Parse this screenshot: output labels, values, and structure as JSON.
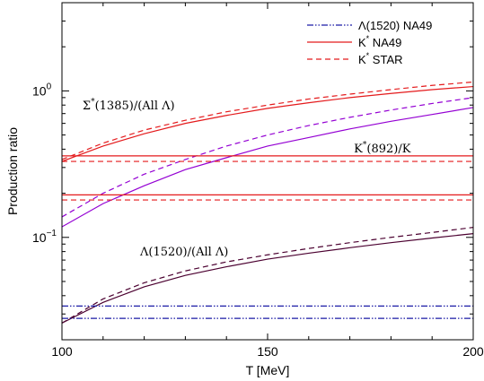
{
  "chart_data": {
    "type": "line",
    "xlabel": "T [MeV]",
    "ylabel": "Production ratio",
    "xlim": [
      100,
      200
    ],
    "ylim": [
      0.02,
      4
    ],
    "y_scale": "log",
    "x_ticks": [
      {
        "value": 100,
        "label": "100"
      },
      {
        "value": 150,
        "label": "150"
      },
      {
        "value": 200,
        "label": "200"
      }
    ],
    "y_ticks": [
      {
        "value": 0.1,
        "base": "10",
        "exp": "−1"
      },
      {
        "value": 1,
        "base": "10",
        "exp": "0"
      }
    ],
    "legend": {
      "position": "top-right",
      "entries": [
        {
          "label": "Λ(1520) NA49",
          "color": "#1a1aa6",
          "dash": "dashdotdot"
        },
        {
          "label": "K* NA49",
          "color": "#e41a1c",
          "dash": "solid"
        },
        {
          "label": "K* STAR",
          "color": "#e41a1c",
          "dash": "dashed"
        }
      ]
    },
    "annotations": [
      {
        "text": "Σ*(1385)/(All Λ)",
        "x": 105,
        "y": 0.75
      },
      {
        "text": "K*(892)/K",
        "x": 171,
        "y": 0.38
      },
      {
        "text": "Λ(1520)/(All Λ)",
        "x": 119,
        "y": 0.075
      }
    ],
    "series": [
      {
        "color": "#e41a1c",
        "dash": "solid",
        "x": [
          100,
          110,
          120,
          130,
          140,
          150,
          160,
          170,
          180,
          190,
          200
        ],
        "y": [
          0.33,
          0.42,
          0.51,
          0.6,
          0.68,
          0.76,
          0.83,
          0.9,
          0.96,
          1.02,
          1.07
        ]
      },
      {
        "color": "#e41a1c",
        "dash": "dashed",
        "x": [
          100,
          110,
          120,
          130,
          140,
          150,
          160,
          170,
          180,
          190,
          200
        ],
        "y": [
          0.34,
          0.44,
          0.54,
          0.63,
          0.72,
          0.8,
          0.88,
          0.95,
          1.02,
          1.09,
          1.15
        ]
      },
      {
        "color": "#9400d3",
        "dash": "solid",
        "x": [
          100,
          110,
          120,
          130,
          140,
          150,
          160,
          170,
          180,
          190,
          200
        ],
        "y": [
          0.118,
          0.17,
          0.225,
          0.29,
          0.35,
          0.42,
          0.48,
          0.55,
          0.62,
          0.69,
          0.77
        ]
      },
      {
        "color": "#9400d3",
        "dash": "dashed",
        "x": [
          100,
          110,
          120,
          130,
          140,
          150,
          160,
          170,
          180,
          190,
          200
        ],
        "y": [
          0.138,
          0.2,
          0.27,
          0.34,
          0.42,
          0.5,
          0.58,
          0.66,
          0.74,
          0.82,
          0.9
        ]
      },
      {
        "color": "#4b0030",
        "dash": "solid",
        "x": [
          100,
          110,
          120,
          130,
          140,
          150,
          160,
          170,
          180,
          190,
          200
        ],
        "y": [
          0.026,
          0.036,
          0.046,
          0.055,
          0.063,
          0.071,
          0.078,
          0.085,
          0.092,
          0.099,
          0.106
        ]
      },
      {
        "color": "#4b0030",
        "dash": "dashed",
        "x": [
          100,
          110,
          120,
          130,
          140,
          150,
          160,
          170,
          180,
          190,
          200
        ],
        "y": [
          0.026,
          0.038,
          0.049,
          0.059,
          0.068,
          0.076,
          0.084,
          0.092,
          0.1,
          0.108,
          0.117
        ]
      },
      {
        "color": "#e41a1c",
        "dash": "solid",
        "x": [
          100,
          200
        ],
        "y": [
          0.36,
          0.36
        ]
      },
      {
        "color": "#e41a1c",
        "dash": "dashed",
        "x": [
          100,
          200
        ],
        "y": [
          0.33,
          0.33
        ]
      },
      {
        "color": "#e41a1c",
        "dash": "solid",
        "x": [
          100,
          200
        ],
        "y": [
          0.195,
          0.195
        ]
      },
      {
        "color": "#e41a1c",
        "dash": "dashed",
        "x": [
          100,
          200
        ],
        "y": [
          0.18,
          0.18
        ]
      },
      {
        "color": "#1a1aa6",
        "dash": "dashdotdot",
        "x": [
          100,
          200
        ],
        "y": [
          0.034,
          0.034
        ]
      },
      {
        "color": "#1a1aa6",
        "dash": "dashdotdot",
        "x": [
          100,
          200
        ],
        "y": [
          0.028,
          0.028
        ]
      }
    ]
  }
}
